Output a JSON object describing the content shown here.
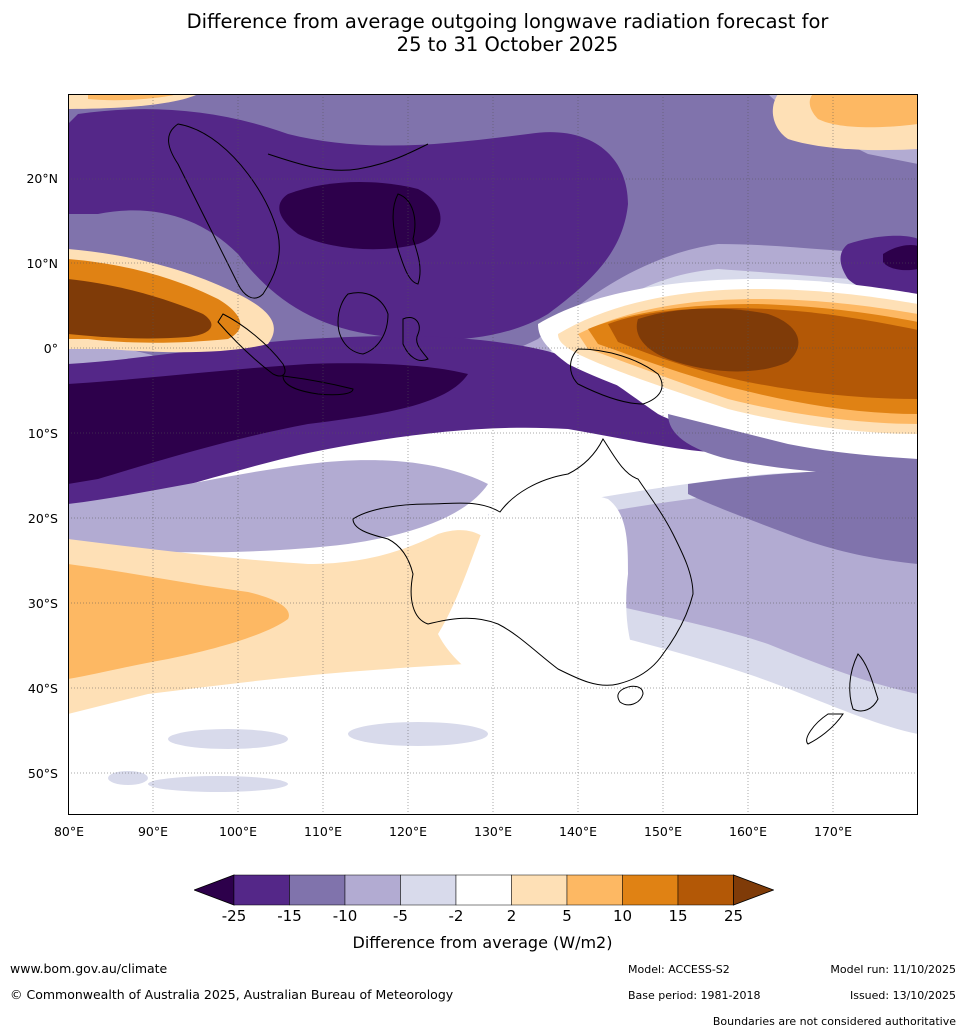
{
  "title": {
    "line1": "Difference from average outgoing longwave radiation forecast for",
    "line2": "25 to 31 October 2025"
  },
  "map": {
    "lat_labels": [
      "20°N",
      "10°N",
      "0°",
      "10°S",
      "20°S",
      "30°S",
      "40°S",
      "50°S"
    ],
    "lon_labels": [
      "80°E",
      "90°E",
      "100°E",
      "110°E",
      "120°E",
      "130°E",
      "140°E",
      "150°E",
      "160°E",
      "170°E"
    ],
    "lon_range": [
      80,
      180
    ],
    "lat_range": [
      -55,
      30
    ]
  },
  "colorbar": {
    "ticks": [
      "-25",
      "-15",
      "-10",
      "-5",
      "-2",
      "2",
      "5",
      "10",
      "15",
      "25"
    ],
    "colors": [
      "#2d004b",
      "#542788",
      "#8073ac",
      "#b2abd2",
      "#d8daeb",
      "#ffffff",
      "#fee0b6",
      "#fdb863",
      "#e08214",
      "#b35806",
      "#7f3b08"
    ],
    "label": "Difference from average (W/m2)"
  },
  "footer": {
    "website": "www.bom.gov.au/climate",
    "copyright": "© Commonwealth of Australia 2025, Australian Bureau of Meteorology",
    "model": "Model: ACCESS-S2",
    "base_period": "Base period: 1981-2018",
    "model_run": "Model run: 11/10/2025",
    "issued": "Issued: 13/10/2025",
    "disclaimer": "Boundaries are not considered authoritative"
  }
}
